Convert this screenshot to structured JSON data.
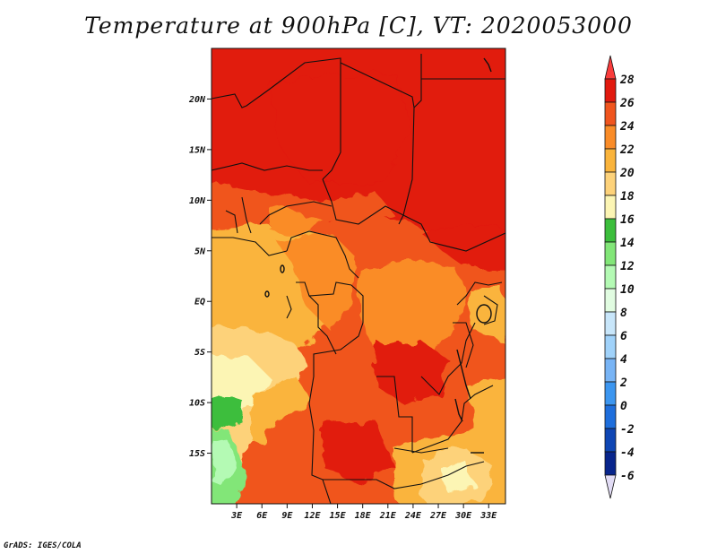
{
  "title": "Temperature at 900hPa [C], VT: 2020053000",
  "credit": "GrADS: IGES/COLA",
  "map": {
    "lon_range": [
      0,
      35
    ],
    "lat_range": [
      -20,
      25
    ],
    "x_ticks": [
      {
        "lon": 3,
        "label": "3E"
      },
      {
        "lon": 6,
        "label": "6E"
      },
      {
        "lon": 9,
        "label": "9E"
      },
      {
        "lon": 12,
        "label": "12E"
      },
      {
        "lon": 15,
        "label": "15E"
      },
      {
        "lon": 18,
        "label": "18E"
      },
      {
        "lon": 21,
        "label": "21E"
      },
      {
        "lon": 24,
        "label": "24E"
      },
      {
        "lon": 27,
        "label": "27E"
      },
      {
        "lon": 30,
        "label": "30E"
      },
      {
        "lon": 33,
        "label": "33E"
      }
    ],
    "y_ticks": [
      {
        "lat": 20,
        "label": "20N"
      },
      {
        "lat": 15,
        "label": "15N"
      },
      {
        "lat": 10,
        "label": "10N"
      },
      {
        "lat": 5,
        "label": "5N"
      },
      {
        "lat": 0,
        "label": "EQ"
      },
      {
        "lat": -5,
        "label": "5S"
      },
      {
        "lat": -10,
        "label": "10S"
      },
      {
        "lat": -15,
        "label": "15S"
      }
    ]
  },
  "colorbar": {
    "labels": [
      "28",
      "26",
      "24",
      "22",
      "20",
      "18",
      "16",
      "14",
      "12",
      "10",
      "8",
      "6",
      "4",
      "2",
      "0",
      "-2",
      "-4",
      "-6"
    ],
    "colors": [
      "#fa3c3c",
      "#e11a0f",
      "#f0551e",
      "#fa8c28",
      "#fab43c",
      "#fdd27a",
      "#fcf5b4",
      "#3cbe3c",
      "#82e678",
      "#b4fab4",
      "#e1fce1",
      "#c8e6fa",
      "#a0d2fa",
      "#78b4f5",
      "#3c96f0",
      "#1e6edc",
      "#0f46b4",
      "#08258c",
      "#0a0a6e",
      "#e2dcf5"
    ]
  },
  "chart_data": {
    "type": "heatmap",
    "title": "Temperature at 900hPa [C], VT: 2020053000",
    "xlabel": "",
    "ylabel": "",
    "x_range": [
      0,
      35
    ],
    "y_range": [
      -20,
      25
    ],
    "legend": "right",
    "levels": [
      -6,
      -4,
      -2,
      0,
      2,
      4,
      6,
      8,
      10,
      12,
      14,
      16,
      18,
      20,
      22,
      24,
      26,
      28
    ],
    "regions": [
      {
        "lon": [
          0,
          35
        ],
        "lat": [
          8,
          25
        ],
        "value": 27
      },
      {
        "lon": [
          0,
          5
        ],
        "lat": [
          -3,
          6
        ],
        "value": 21
      },
      {
        "lon": [
          8,
          14
        ],
        "lat": [
          -3,
          6
        ],
        "value": 22
      },
      {
        "lon": [
          18,
          30
        ],
        "lat": [
          -8,
          5
        ],
        "value": 24
      },
      {
        "lon": [
          0,
          4
        ],
        "lat": [
          -10,
          -5
        ],
        "value": 19
      },
      {
        "lon": [
          0,
          2.5
        ],
        "lat": [
          -20,
          -11
        ],
        "value": 14
      },
      {
        "lon": [
          14,
          26
        ],
        "lat": [
          -19,
          -8
        ],
        "value": 24
      },
      {
        "lon": [
          26,
          34
        ],
        "lat": [
          -19,
          -14
        ],
        "value": 21
      }
    ]
  }
}
